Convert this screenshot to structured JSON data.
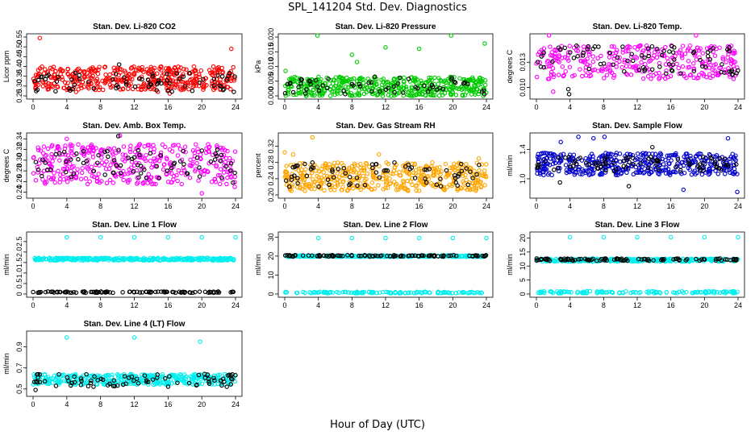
{
  "figure": {
    "title": "SPL_141204  Std. Dev. Diagnostics",
    "xlabel": "Hour of Day (UTC)"
  },
  "chart_data": [
    {
      "type": "scatter",
      "title": "Stan. Dev. Li-820 CO2",
      "ylabel": "Licor ppm",
      "xlim": [
        0,
        24
      ],
      "xticks": [
        0,
        4,
        8,
        12,
        16,
        20,
        24
      ],
      "ylim": [
        0.25,
        0.55
      ],
      "yticks": [
        "0.25",
        "0.30",
        "0.35",
        "0.40",
        "0.45",
        "0.50",
        "0.55"
      ],
      "grid": false,
      "series": [
        {
          "color": "#ff0000",
          "n": 420,
          "band": [
            0.28,
            0.4
          ],
          "outliers": [
            [
              0.8,
              0.545
            ],
            [
              23.5,
              0.49
            ],
            [
              16.2,
              0.262
            ],
            [
              5.1,
              0.27
            ],
            [
              14.8,
              0.27
            ]
          ]
        },
        {
          "color": "#000000",
          "n": 70,
          "band": [
            0.27,
            0.37
          ],
          "outliers": [
            [
              10.2,
              0.41
            ],
            [
              23.8,
              0.27
            ]
          ]
        }
      ]
    },
    {
      "type": "scatter",
      "title": "Stan. Dev. Li-820 Pressure",
      "ylabel": "kPa",
      "xlim": [
        0,
        24
      ],
      "xticks": [
        0,
        4,
        8,
        12,
        16,
        20,
        24
      ],
      "ylim": [
        0,
        0.02
      ],
      "yticks": [
        "0.000",
        "0.005",
        "0.010",
        "0.015",
        "0.020"
      ],
      "grid": false,
      "series": [
        {
          "color": "#00cc00",
          "n": 450,
          "band": [
            0,
            0.0065
          ],
          "outliers": [
            [
              3.9,
              0.0205
            ],
            [
              8,
              0.014
            ],
            [
              12,
              0.0165
            ],
            [
              16,
              0.016
            ],
            [
              19.8,
              0.0205
            ],
            [
              23.8,
              0.0178
            ],
            [
              0.1,
              0.0085
            ],
            [
              8.6,
              0.0115
            ]
          ]
        },
        {
          "color": "#000000",
          "n": 60,
          "band": [
            0,
            0.0065
          ],
          "outliers": []
        }
      ]
    },
    {
      "type": "scatter",
      "title": "Stan. Dev. Li-820 Temp.",
      "ylabel": "degrees C",
      "xlim": [
        0,
        24
      ],
      "xticks": [
        0,
        4,
        8,
        12,
        16,
        20,
        24
      ],
      "ylim": [
        0.009,
        0.016
      ],
      "yticks": [
        "0.010",
        "0.013"
      ],
      "grid": false,
      "series": [
        {
          "color": "#ff00ff",
          "n": 320,
          "band": [
            0.011,
            0.015
          ],
          "outliers": [
            [
              1.5,
              0.0162
            ],
            [
              19,
              0.0162
            ],
            [
              2,
              0.0095
            ]
          ]
        },
        {
          "color": "#000000",
          "n": 80,
          "band": [
            0.0115,
            0.015
          ],
          "outliers": [
            [
              3.9,
              0.0092
            ],
            [
              3.8,
              0.0098
            ]
          ]
        }
      ]
    },
    {
      "type": "scatter",
      "title": "Stan. Dev. Amb. Box Temp.",
      "ylabel": "degrees C",
      "xlim": [
        0,
        24
      ],
      "xticks": [
        0,
        4,
        8,
        12,
        16,
        20,
        24
      ],
      "ylim": [
        0.235,
        0.345
      ],
      "yticks": [
        "0.24",
        "0.26",
        "0.28",
        "0.30",
        "0.32",
        "0.34"
      ],
      "grid": false,
      "series": [
        {
          "color": "#ff00ff",
          "n": 380,
          "band": [
            0.255,
            0.33
          ],
          "outliers": [
            [
              10.3,
              0.346
            ],
            [
              20,
              0.238
            ],
            [
              23.9,
              0.25
            ],
            [
              4,
              0.34
            ]
          ]
        },
        {
          "color": "#000000",
          "n": 75,
          "band": [
            0.265,
            0.32
          ],
          "outliers": [
            [
              23.7,
              0.258
            ],
            [
              10.1,
              0.345
            ]
          ]
        }
      ]
    },
    {
      "type": "scatter",
      "title": "Stan. Dev. Gas Stream RH",
      "ylabel": "percent",
      "xlim": [
        0,
        24
      ],
      "xticks": [
        0,
        4,
        8,
        12,
        16,
        20,
        24
      ],
      "ylim": [
        0.2,
        0.345
      ],
      "yticks": [
        "0.20",
        "0.24",
        "0.28",
        "0.32"
      ],
      "grid": false,
      "series": [
        {
          "color": "#ffa500",
          "n": 450,
          "band": [
            0.21,
            0.28
          ],
          "outliers": [
            [
              3.3,
              0.342
            ],
            [
              0,
              0.305
            ],
            [
              11.2,
              0.3
            ],
            [
              23.1,
              0.29
            ],
            [
              1,
              0.3
            ]
          ]
        },
        {
          "color": "#000000",
          "n": 70,
          "band": [
            0.22,
            0.28
          ],
          "outliers": []
        }
      ]
    },
    {
      "type": "scatter",
      "title": "Stan. Dev. Sample Flow",
      "ylabel": "ml/min",
      "xlim": [
        0,
        24
      ],
      "xticks": [
        0,
        4,
        8,
        12,
        16,
        20,
        24
      ],
      "ylim": [
        0.78,
        1.58
      ],
      "yticks": [
        "1.0",
        "1.4"
      ],
      "grid": false,
      "series": [
        {
          "color": "#0000cc",
          "n": 420,
          "band": [
            1.05,
            1.35
          ],
          "outliers": [
            [
              5,
              1.57
            ],
            [
              6.8,
              1.55
            ],
            [
              8.1,
              1.57
            ],
            [
              22.8,
              1.55
            ],
            [
              23.9,
              0.82
            ],
            [
              17.5,
              0.85
            ],
            [
              2.9,
              1.5
            ]
          ]
        },
        {
          "color": "#000000",
          "n": 80,
          "band": [
            1.1,
            1.3
          ],
          "outliers": [
            [
              2.8,
              0.95
            ],
            [
              11,
              0.9
            ],
            [
              13.8,
              1.43
            ]
          ]
        }
      ]
    },
    {
      "type": "scatter",
      "title": "Stan. Dev. Line 1 Flow",
      "ylabel": "ml/min",
      "xlim": [
        0,
        24
      ],
      "xticks": [
        0,
        4,
        8,
        12,
        16,
        20,
        24
      ],
      "ylim": [
        0,
        2.8
      ],
      "yticks": [
        "0",
        "0.5",
        "1.0",
        "1.5",
        "2.0",
        "2.5"
      ],
      "grid": false,
      "series": [
        {
          "color": "#00eeee",
          "n": 300,
          "band": [
            1.6,
            1.72
          ],
          "outliers": [
            [
              4,
              2.7
            ],
            [
              8,
              2.7
            ],
            [
              12,
              2.7
            ],
            [
              16,
              2.7
            ],
            [
              20,
              2.7
            ],
            [
              24,
              2.7
            ]
          ]
        },
        {
          "color": "#000000",
          "n": 100,
          "band": [
            0.06,
            0.12
          ],
          "outliers": []
        }
      ]
    },
    {
      "type": "scatter",
      "title": "Stan. Dev. Line 2 Flow",
      "ylabel": "ml/min",
      "xlim": [
        0,
        24
      ],
      "xticks": [
        0,
        4,
        8,
        12,
        16,
        20,
        24
      ],
      "ylim": [
        0,
        31
      ],
      "yticks": [
        "0",
        "10",
        "20",
        "30"
      ],
      "grid": false,
      "series": [
        {
          "color": "#00eeee",
          "n": 300,
          "band": [
            19.6,
            20.4
          ],
          "outliers": [
            [
              4,
              29.5
            ],
            [
              8,
              29.5
            ],
            [
              12,
              29.5
            ],
            [
              16,
              29.5
            ],
            [
              20,
              29.5
            ],
            [
              24,
              29.5
            ]
          ]
        },
        {
          "color": "#00eeee",
          "n": 120,
          "band": [
            0.4,
            1.2
          ],
          "outliers": []
        },
        {
          "color": "#000000",
          "n": 100,
          "band": [
            19.7,
            20.5
          ],
          "outliers": []
        }
      ]
    },
    {
      "type": "scatter",
      "title": "Stan. Dev. Line 3 Flow",
      "ylabel": "ml/min",
      "xlim": [
        0,
        24
      ],
      "xticks": [
        0,
        4,
        8,
        12,
        16,
        20,
        24
      ],
      "ylim": [
        0,
        21
      ],
      "yticks": [
        "0",
        "5",
        "10",
        "15",
        "20"
      ],
      "grid": false,
      "series": [
        {
          "color": "#00eeee",
          "n": 300,
          "band": [
            11.6,
            12.6
          ],
          "outliers": [
            [
              4,
              20.3
            ],
            [
              8,
              20.3
            ],
            [
              12,
              20.3
            ],
            [
              16,
              20.3
            ],
            [
              20,
              20.3
            ],
            [
              24,
              20.3
            ]
          ]
        },
        {
          "color": "#00eeee",
          "n": 120,
          "band": [
            0.3,
            1.0
          ],
          "outliers": []
        },
        {
          "color": "#000000",
          "n": 100,
          "band": [
            11.9,
            12.7
          ],
          "outliers": []
        }
      ]
    },
    {
      "type": "scatter",
      "title": "Stan. Dev. Line 4 (LT) Flow",
      "ylabel": "ml/min",
      "xlim": [
        0,
        24
      ],
      "xticks": [
        0,
        4,
        8,
        12,
        16,
        20,
        24
      ],
      "ylim": [
        0.46,
        1.02
      ],
      "yticks": [
        "0.5",
        "0.7",
        "0.9"
      ],
      "grid": false,
      "series": [
        {
          "color": "#00eeee",
          "n": 380,
          "band": [
            0.54,
            0.64
          ],
          "outliers": [
            [
              4,
              0.99
            ],
            [
              12,
              0.99
            ],
            [
              19.8,
              0.95
            ]
          ]
        },
        {
          "color": "#000000",
          "n": 80,
          "band": [
            0.52,
            0.65
          ],
          "outliers": [
            [
              0.3,
              0.49
            ]
          ]
        }
      ]
    }
  ]
}
